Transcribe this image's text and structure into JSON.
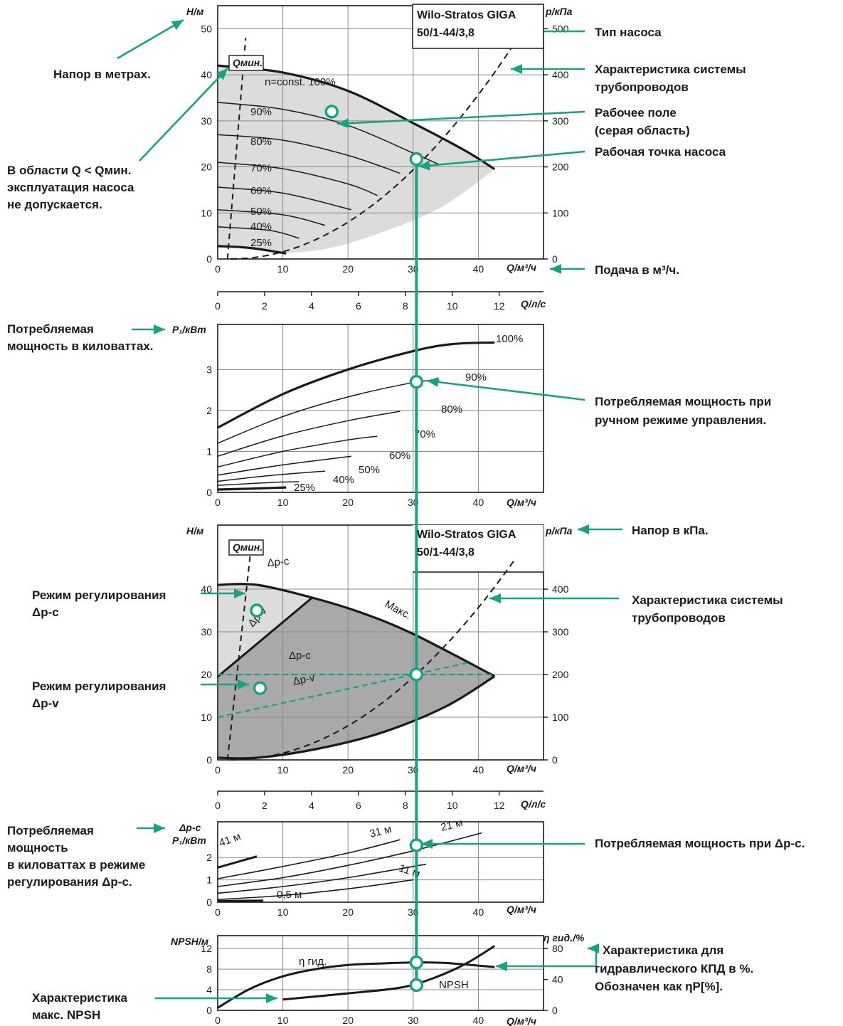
{
  "pump_type": {
    "line1": "Wilo-Stratos GIGA",
    "line2": "50/1-44/3,8"
  },
  "colors": {
    "accent": "#1aa083",
    "gray_field": "#dcdcdc",
    "dark_field": "#a9a9a9",
    "line": "#1a1a1a"
  },
  "axes": {
    "H": "Н/м",
    "p_kpa": "p/кПа",
    "Q_m3h": "Q/м³/ч",
    "Q_ls": "Q/л/с",
    "P1": "P₁/кВт",
    "dpc": "Δp-c",
    "NPSH": "NPSH/м",
    "eta": "η гид./%"
  },
  "annotations": {
    "head_m": "Напор в метрах.",
    "qmin_1": "В области Q < Qмин.",
    "qmin_2": "эксплуатация насоса",
    "qmin_3": "не допускается.",
    "pump_type": "Тип насоса",
    "sys_char_1": "Характеристика системы",
    "sys_char_2": "трубопроводов",
    "work_field_1": "Рабочее поле",
    "work_field_2": "(серая область)",
    "work_point": "Рабочая точка насоса",
    "flow": "Подача в м³/ч.",
    "power_1": "Потребляемая",
    "power_2": "мощность в киловаттах.",
    "power_manual_1": "Потребляемая мощность при",
    "power_manual_2": "ручном режиме управления.",
    "head_kpa": "Напор в кПа.",
    "mode_dpc_1": "Режим регулирования",
    "mode_dpc_2": "Δp-c",
    "mode_dpv_1": "Режим регулирования",
    "mode_dpv_2": "Δp-v",
    "power_dpc_1": "Потребляемая",
    "power_dpc_2": "мощность",
    "power_dpc_3": "в киловаттах в режиме",
    "power_dpc_4": "регулирования Δp-c.",
    "power_at_dpc": "Потребляемая мощность при Δp-c.",
    "eta_1": "Характеристика для",
    "eta_2": "гидравлического КПД в %.",
    "eta_3": "Обозначен как ηP[%].",
    "npsh_1": "Характеристика",
    "npsh_2": "макс. NPSH"
  },
  "chart_data": [
    {
      "id": "head_manual",
      "type": "line",
      "title": "",
      "xlabel": "Q/м³/ч",
      "ylabel": "Н/м",
      "y2label": "p/кПа",
      "x2label": "Q/л/с",
      "xlim": [
        0,
        50
      ],
      "ylim": [
        0,
        55
      ],
      "y2lim": [
        0,
        550
      ],
      "xticks": [
        0,
        10,
        20,
        30,
        40
      ],
      "yticks": [
        0,
        10,
        20,
        30,
        40,
        50
      ],
      "y2ticks": [
        0,
        100,
        200,
        300,
        400,
        500
      ],
      "x2ticks": [
        0,
        2,
        4,
        6,
        8,
        10,
        12
      ],
      "qmin_label": "Qмин.",
      "max_label": "n=const. 100%",
      "series": [
        {
          "name": "100%",
          "x": [
            0,
            10,
            20,
            30,
            38,
            42.5
          ],
          "y": [
            42,
            40.5,
            36.5,
            29.5,
            23.5,
            19.5
          ]
        },
        {
          "name": "90%",
          "x": [
            0,
            10,
            20,
            30,
            34
          ],
          "y": [
            34,
            32.5,
            29,
            23,
            20.5
          ]
        },
        {
          "name": "80%",
          "x": [
            0,
            10,
            20,
            28
          ],
          "y": [
            27,
            25.8,
            22.5,
            18.6
          ]
        },
        {
          "name": "70%",
          "x": [
            0,
            10,
            20,
            24.5
          ],
          "y": [
            21,
            19.6,
            16.3,
            13.8
          ]
        },
        {
          "name": "60%",
          "x": [
            0,
            10,
            20.5
          ],
          "y": [
            15.6,
            14.3,
            10.7
          ]
        },
        {
          "name": "50%",
          "x": [
            0,
            10,
            16.5
          ],
          "y": [
            10.7,
            9.6,
            7.3
          ]
        },
        {
          "name": "40%",
          "x": [
            0,
            8,
            12.5
          ],
          "y": [
            7,
            6.2,
            4.5
          ]
        },
        {
          "name": "25%",
          "x": [
            0,
            5,
            10.5
          ],
          "y": [
            2.8,
            2.4,
            1.2
          ]
        }
      ],
      "qmin": {
        "x": [
          1.5,
          4.3
        ],
        "y": [
          0,
          48
        ]
      },
      "system_curve": {
        "k": 0.0247,
        "x0": 2,
        "xmax": 49
      },
      "work_point": {
        "q": 30.5,
        "h": 21.7
      },
      "field_marker": {
        "q": 17.5,
        "h": 32
      }
    },
    {
      "id": "power_manual",
      "type": "line",
      "title": "",
      "xlabel": "Q/м³/ч",
      "ylabel": "P₁/кВт",
      "xlim": [
        0,
        50
      ],
      "ylim": [
        0,
        4.1
      ],
      "xticks": [
        0,
        10,
        20,
        30,
        40
      ],
      "yticks": [
        0,
        1,
        2,
        3
      ],
      "series": [
        {
          "name": "100%",
          "x": [
            0,
            10,
            20,
            30,
            36,
            42.5
          ],
          "y": [
            1.58,
            2.4,
            3.0,
            3.45,
            3.62,
            3.66
          ]
        },
        {
          "name": "90%",
          "x": [
            0,
            10,
            20,
            30,
            34
          ],
          "y": [
            1.2,
            1.85,
            2.33,
            2.68,
            2.74
          ]
        },
        {
          "name": "80%",
          "x": [
            0,
            10,
            20,
            28
          ],
          "y": [
            0.88,
            1.38,
            1.75,
            1.98
          ]
        },
        {
          "name": "70%",
          "x": [
            0,
            10,
            20,
            24.5
          ],
          "y": [
            0.62,
            1.0,
            1.28,
            1.37
          ]
        },
        {
          "name": "60%",
          "x": [
            0,
            10,
            20.5
          ],
          "y": [
            0.42,
            0.67,
            0.88
          ]
        },
        {
          "name": "50%",
          "x": [
            0,
            8,
            16.5
          ],
          "y": [
            0.27,
            0.41,
            0.52
          ]
        },
        {
          "name": "40%",
          "x": [
            0,
            8,
            12.5
          ],
          "y": [
            0.17,
            0.24,
            0.26
          ]
        },
        {
          "name": "25%",
          "x": [
            0,
            5,
            10.5
          ],
          "y": [
            0.07,
            0.09,
            0.12
          ]
        }
      ],
      "point": {
        "q": 30.5,
        "p": 2.7
      }
    },
    {
      "id": "head_control",
      "type": "line",
      "title": "",
      "xlabel": "Q/м³/ч",
      "ylabel": "Н/м",
      "y2label": "p/кПа",
      "x2label": "Q/л/с",
      "xlim": [
        0,
        50
      ],
      "ylim": [
        0,
        55
      ],
      "y2lim": [
        0,
        550
      ],
      "xticks": [
        0,
        10,
        20,
        30,
        40
      ],
      "yticks": [
        0,
        10,
        20,
        30,
        40
      ],
      "y2ticks": [
        0,
        100,
        200,
        300,
        400
      ],
      "x2ticks": [
        0,
        2,
        4,
        6,
        8,
        10,
        12
      ],
      "qmin_label": "Qмин.",
      "labels": {
        "dpc_top": "Δp-c",
        "dpv_diag": "Δp-v",
        "max": "Макс.",
        "dpc_line": "Δp-c",
        "dpv_line": "Δp-v"
      },
      "max_curve": {
        "x": [
          0,
          6,
          14.5,
          22,
          30,
          42.5
        ],
        "y": [
          41,
          41,
          38,
          34.5,
          29.5,
          19.6
        ]
      },
      "dpv_boundary": {
        "x": [
          0,
          14.5
        ],
        "y": [
          19.5,
          38
        ]
      },
      "min_curve": {
        "x": [
          0,
          6,
          15,
          25,
          35,
          42.5
        ],
        "y": [
          0.5,
          0.5,
          2.5,
          6.3,
          12.5,
          19.6
        ]
      },
      "dpc_line": {
        "x": [
          0,
          40
        ],
        "y": [
          20,
          20
        ]
      },
      "dpv_line": {
        "x": [
          0,
          38.5
        ],
        "y": [
          10,
          22.8
        ]
      },
      "qmin": {
        "x": [
          1.5,
          5
        ],
        "y": [
          0,
          48
        ]
      },
      "system_curve": {
        "k": 0.0247,
        "x0": 2,
        "xmax": 45.5
      },
      "work_point": {
        "q": 30.5,
        "h": 20
      },
      "dpc_marker": {
        "q": 6,
        "h": 35
      },
      "dpv_marker": {
        "q": 6.5,
        "h": 16.8
      }
    },
    {
      "id": "power_dpc",
      "type": "line",
      "title": "",
      "xlabel": "Q/м³/ч",
      "ylabel": "P₁/кВт",
      "xlim": [
        0,
        50
      ],
      "ylim": [
        0,
        3.6
      ],
      "xticks": [
        0,
        10,
        20,
        30,
        40
      ],
      "yticks": [
        0,
        1,
        2
      ],
      "series": [
        {
          "name": "41 м",
          "x": [
            0,
            6
          ],
          "y": [
            1.55,
            2.05
          ]
        },
        {
          "name": "31 м",
          "x": [
            0,
            10,
            20,
            28
          ],
          "y": [
            1.05,
            1.6,
            2.2,
            2.8
          ]
        },
        {
          "name": "21 м",
          "x": [
            0,
            10,
            20,
            30,
            40.5
          ],
          "y": [
            0.7,
            1.1,
            1.65,
            2.3,
            3.1
          ]
        },
        {
          "name": "11 м",
          "x": [
            0,
            10,
            20,
            32
          ],
          "y": [
            0.4,
            0.7,
            1.1,
            1.7
          ]
        },
        {
          "name": "0,5 м",
          "x": [
            0,
            10,
            20,
            30
          ],
          "y": [
            0.12,
            0.3,
            0.6,
            1.0
          ]
        },
        {
          "name": "",
          "x": [
            0,
            7
          ],
          "y": [
            0.05,
            0.07
          ]
        }
      ],
      "point": {
        "q": 30.5,
        "p": 2.55
      }
    },
    {
      "id": "npsh_eta",
      "type": "line",
      "title": "",
      "xlabel": "Q/м³/ч",
      "ylabel": "NPSH/м",
      "y2label": "η гид./%",
      "xlim": [
        0,
        50
      ],
      "ylim": [
        0,
        14.5
      ],
      "y2lim": [
        0,
        96.7
      ],
      "xticks": [
        0,
        10,
        20,
        30,
        40
      ],
      "yticks": [
        0,
        4,
        8,
        12
      ],
      "y2ticks": [
        0,
        40,
        80
      ],
      "series": [
        {
          "name": "η гид.",
          "x": [
            0,
            5,
            10,
            15,
            20,
            25,
            30,
            35,
            42.5
          ],
          "y": [
            0.5,
            4.2,
            6.6,
            8,
            8.8,
            9.1,
            9.3,
            9.2,
            8.4
          ]
        },
        {
          "name": "NPSH",
          "x": [
            10,
            20,
            28,
            33,
            38,
            42.5
          ],
          "y": [
            2.1,
            3.3,
            4.4,
            6.2,
            9,
            12.5
          ]
        }
      ],
      "eta_point": {
        "q": 30.5,
        "y": 9.3
      },
      "npsh_point": {
        "q": 30.5,
        "y": 4.9
      }
    }
  ]
}
